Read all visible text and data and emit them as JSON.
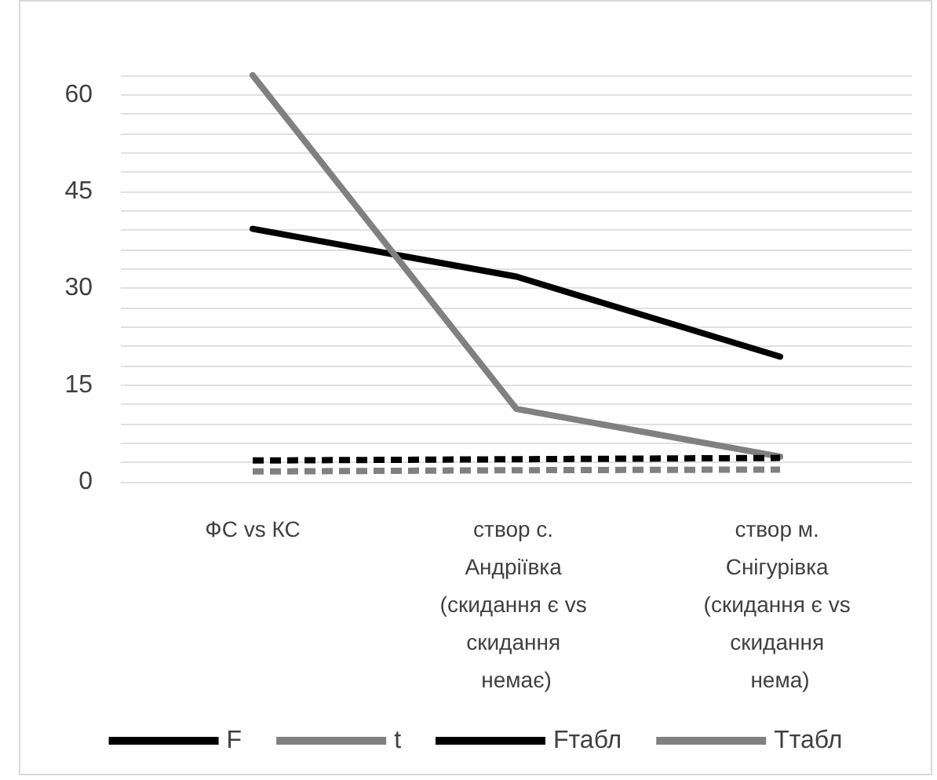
{
  "chart_data": {
    "type": "line",
    "categories": [
      "ФС vs КС",
      "створ с. Андріївка (скидання є vs скидання немає)",
      "створ м. Снігурівка (скидання є vs скидання нема)"
    ],
    "series": [
      {
        "name": "F",
        "color": "#000000",
        "values": [
          39.2,
          31.8,
          19.4
        ],
        "line_style": "solid"
      },
      {
        "name": "t",
        "color": "#808080",
        "values": [
          63.0,
          11.3,
          3.9
        ],
        "line_style": "solid"
      },
      {
        "name": "Fтабл",
        "color": "#000000",
        "values": [
          3.3,
          3.5,
          3.7
        ],
        "line_style": "dashed"
      },
      {
        "name": "Tтабл",
        "color": "#808080",
        "values": [
          1.6,
          1.8,
          1.9
        ],
        "line_style": "dashed"
      }
    ],
    "ylim": [
      0,
      63
    ],
    "yticks": [
      0,
      {
        "value": 3,
        "label": null
      },
      {
        "value": 6,
        "label": null
      },
      {
        "value": 9,
        "label": null
      },
      {
        "value": 12,
        "label": null
      },
      15,
      {
        "value": 18,
        "label": null
      },
      {
        "value": 21,
        "label": null
      },
      {
        "value": 24,
        "label": null
      },
      {
        "value": 27,
        "label": null
      },
      30,
      {
        "value": 33,
        "label": null
      },
      {
        "value": 36,
        "label": null
      },
      {
        "value": 39,
        "label": null
      },
      {
        "value": 42,
        "label": null
      },
      45,
      {
        "value": 48,
        "label": null
      },
      {
        "value": 51,
        "label": null
      },
      {
        "value": 54,
        "label": null
      },
      {
        "value": 57,
        "label": null
      },
      60,
      {
        "value": 63,
        "label": null
      }
    ],
    "grid": true,
    "legend": "bottom",
    "marker": "none"
  }
}
